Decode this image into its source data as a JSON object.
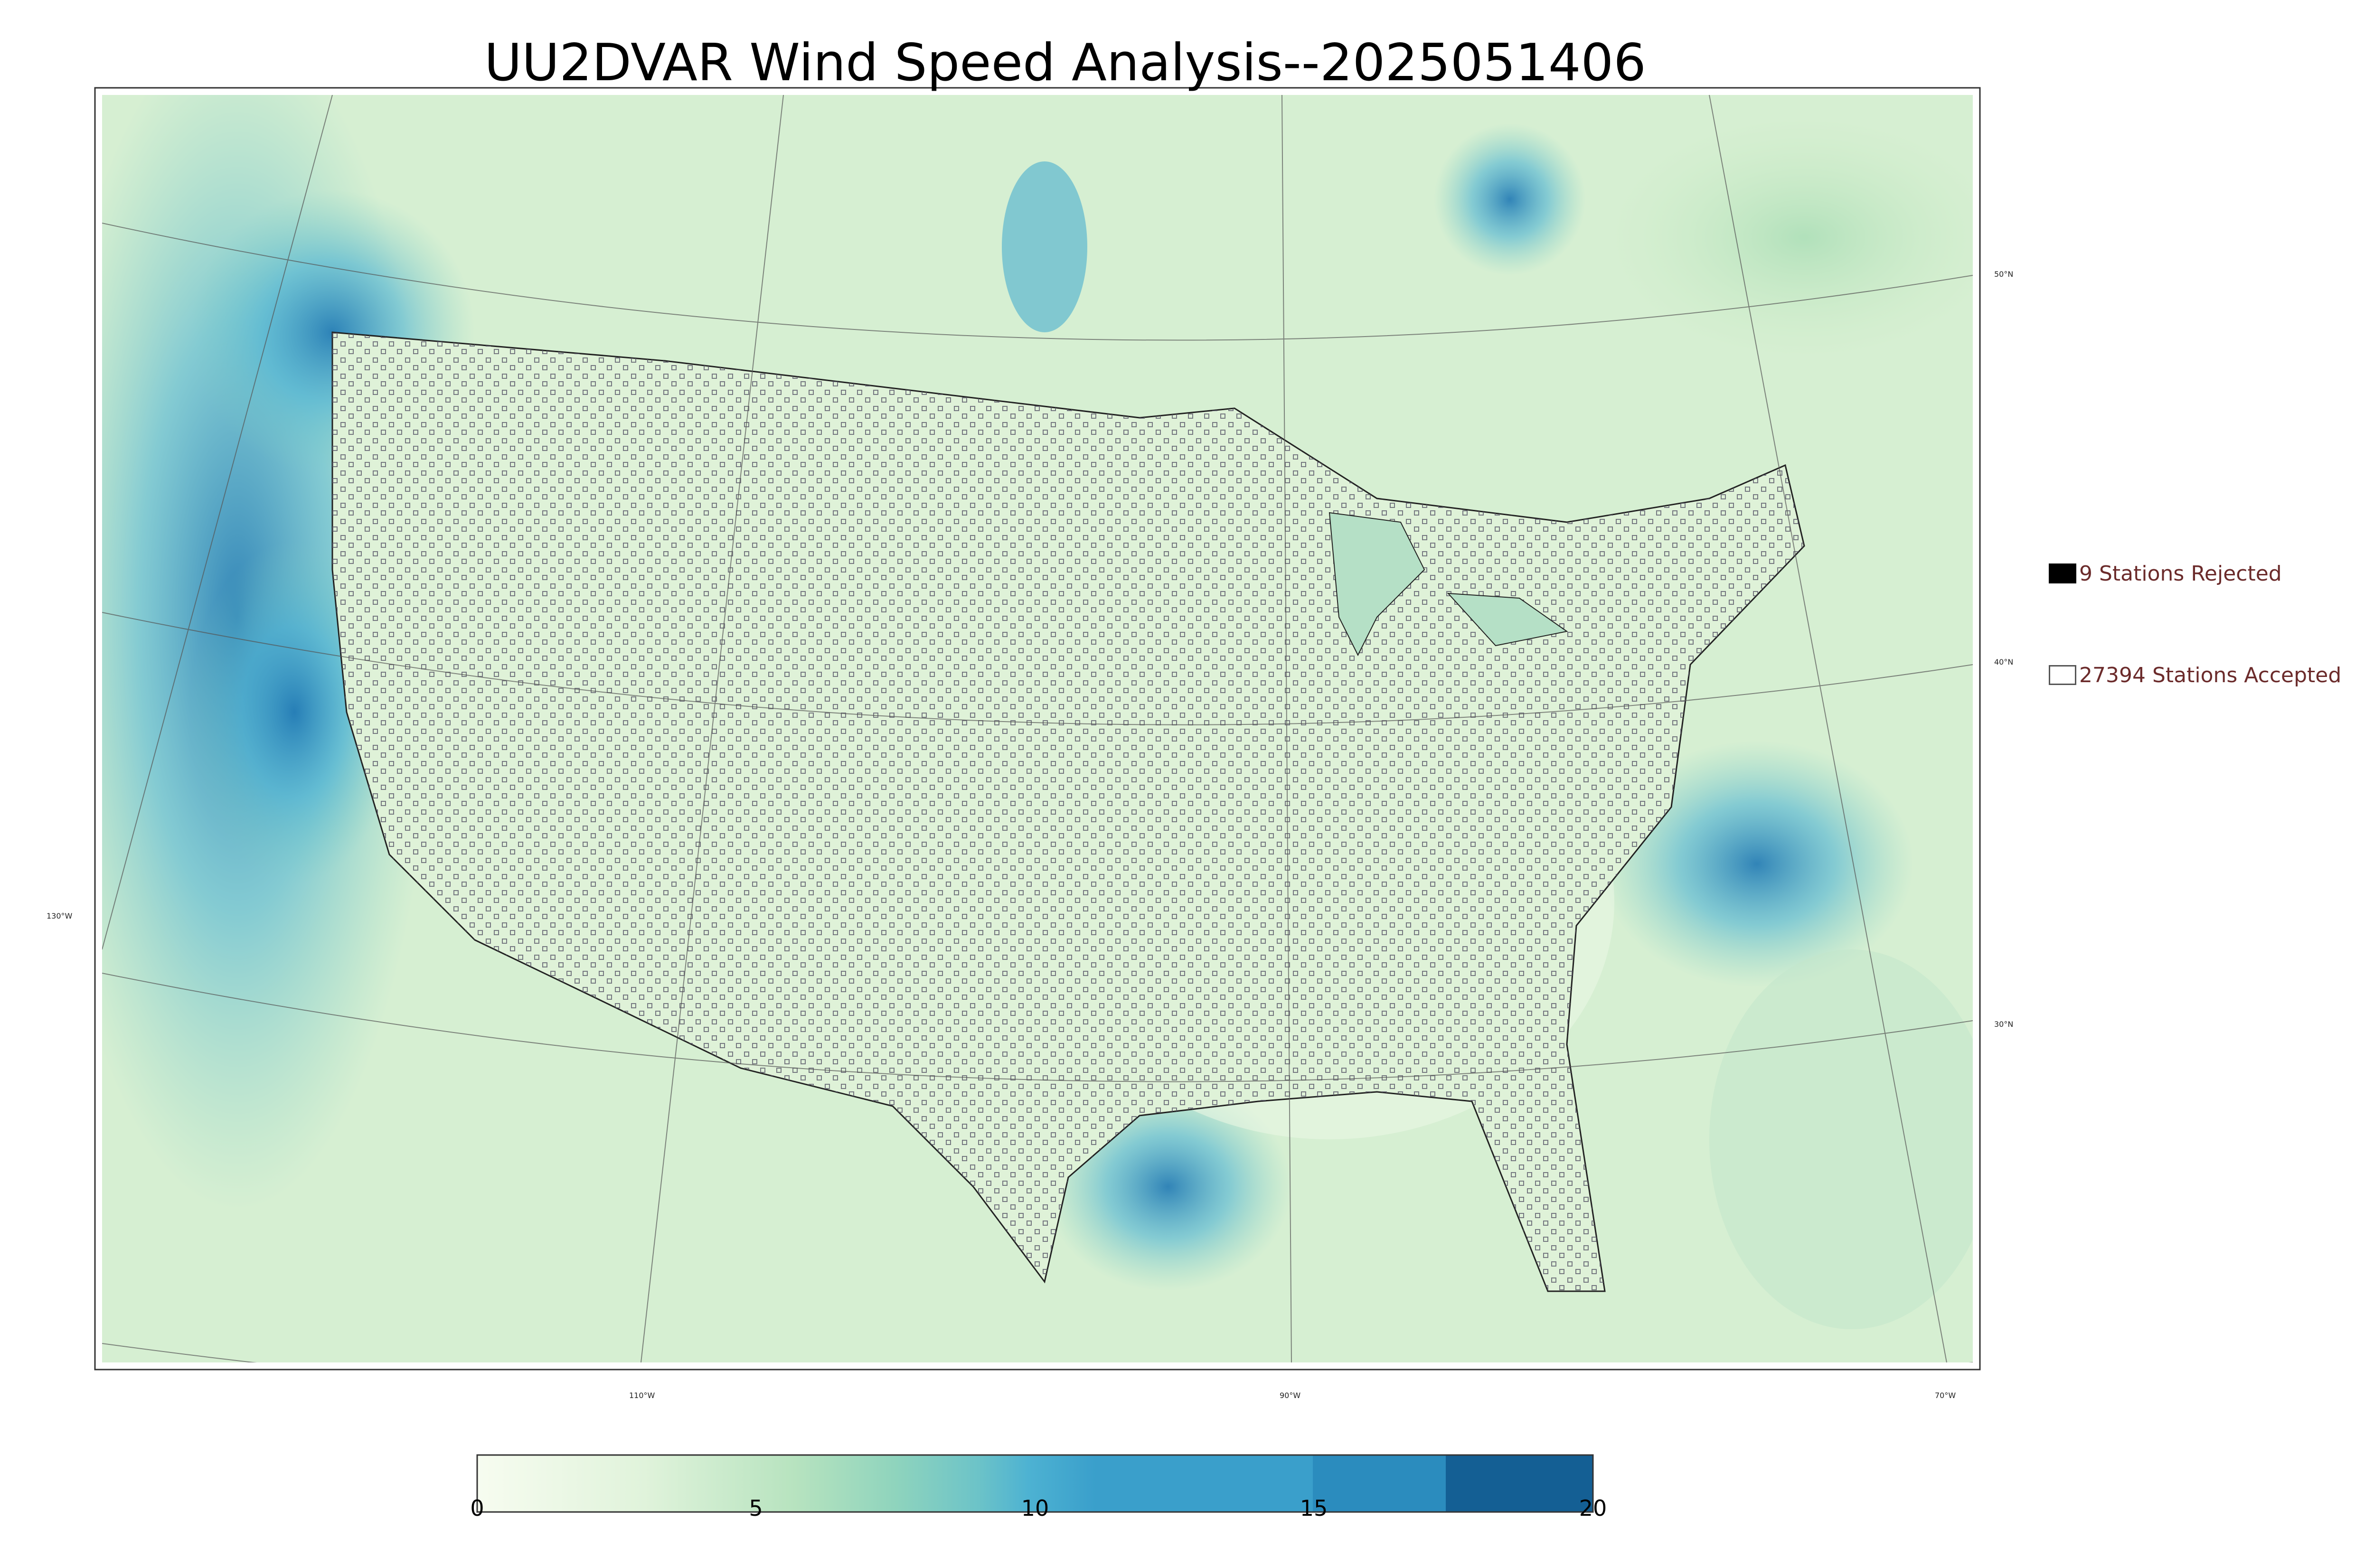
{
  "title": "UU2DVAR Wind Speed Analysis--2025051406",
  "map": {
    "lon_labels": [
      "130°W",
      "110°W",
      "90°W",
      "70°W"
    ],
    "lat_labels": [
      "50°N",
      "40°N",
      "30°N"
    ]
  },
  "legend": {
    "rejected": {
      "count": 9,
      "label": "9 Stations Rejected",
      "color": "#000000"
    },
    "accepted": {
      "count": 27394,
      "label": "27394 Stations Accepted",
      "color": "#ffffff"
    }
  },
  "colorbar": {
    "min": 0,
    "max": 20,
    "ticks": [
      "0",
      "5",
      "10",
      "15",
      "20"
    ],
    "colors": [
      "#f7fcf0",
      "#e0f3db",
      "#ccebc5",
      "#a8ddb5",
      "#7bccc4",
      "#4eb3d3",
      "#2b8cbe",
      "#0868ac"
    ]
  }
}
